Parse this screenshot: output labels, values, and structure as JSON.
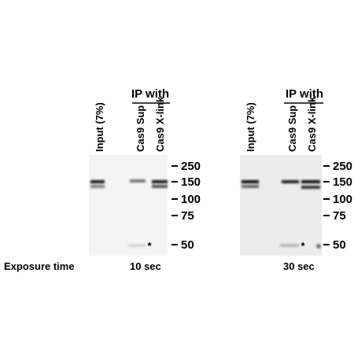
{
  "exposure_label": "Exposure time",
  "panels": [
    {
      "header": "IP with",
      "lanes": [
        "Input (7%)",
        "Cas9 Sup",
        "Cas9 X-link"
      ],
      "markers": [
        "250",
        "150",
        "100",
        "75",
        "50"
      ],
      "asterisk": "*",
      "exposure": "10 sec"
    },
    {
      "header": "IP with",
      "lanes": [
        "Input (7%)",
        "Cas9 Sup",
        "Cas9 X-link"
      ],
      "markers": [
        "250",
        "150",
        "100",
        "75",
        "50"
      ],
      "asterisk": "*",
      "exposure": "30 sec"
    }
  ]
}
